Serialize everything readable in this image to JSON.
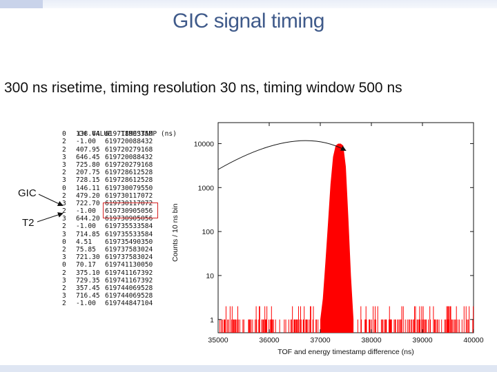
{
  "slide": {
    "title": "GIC signal timing",
    "subtitle": "300 ns risetime, timing resolution 30 ns, timing window 500 ns"
  },
  "table": {
    "headers": [
      "CH",
      "VALUE",
      "TIMESTAMP (ns)"
    ],
    "rows": [
      [
        "0",
        "138.64",
        "619718903350"
      ],
      [
        "2",
        "-1.00",
        "619720088432"
      ],
      [
        "2",
        "407.95",
        "619720279168"
      ],
      [
        "3",
        "646.45",
        "619720088432"
      ],
      [
        "3",
        "725.80",
        "619720279168"
      ],
      [
        "2",
        "207.75",
        "619728612528"
      ],
      [
        "3",
        "728.15",
        "619728612528"
      ],
      [
        "0",
        "146.11",
        "619730079550"
      ],
      [
        "2",
        "479.20",
        "619730117072"
      ],
      [
        "3",
        "722.70",
        "619730117072"
      ],
      [
        "2",
        "-1.00",
        "619730905056"
      ],
      [
        "3",
        "644.20",
        "619730905056"
      ],
      [
        "2",
        "-1.00",
        "619735533584"
      ],
      [
        "3",
        "714.85",
        "619735533584"
      ],
      [
        "0",
        "4.51",
        "619735490350"
      ],
      [
        "2",
        "75.85",
        "619737583024"
      ],
      [
        "3",
        "721.30",
        "619737583024"
      ],
      [
        "0",
        "70.17",
        "619741130050"
      ],
      [
        "2",
        "375.10",
        "619741167392"
      ],
      [
        "3",
        "729.35",
        "619741167392"
      ],
      [
        "2",
        "357.45",
        "619744069528"
      ],
      [
        "3",
        "716.45",
        "619744069528"
      ],
      [
        "2",
        "-1.00",
        "619744847104"
      ]
    ]
  },
  "callouts": {
    "gic": "GIC",
    "t2": "T2"
  },
  "colors": {
    "bars": "#ff0000",
    "title": "#3f5a8a",
    "highlight": "#d42020"
  },
  "chart_data": {
    "type": "bar",
    "xlabel": "TOF and energy timestamp difference (ns)",
    "ylabel": "Counts / 10 ns bin",
    "xlim": [
      35000,
      40000
    ],
    "ylim": [
      0.5,
      30000
    ],
    "yscale": "log",
    "xticks": [
      "35000",
      "36000",
      "37000",
      "38000",
      "39000",
      "40000"
    ],
    "yticks": [
      "1",
      "10",
      "100",
      "1000",
      "10000"
    ],
    "grid": false,
    "peak": {
      "x": [
        37000,
        37050,
        37100,
        37150,
        37200,
        37250,
        37300,
        37350,
        37400,
        37450,
        37500,
        37550,
        37600,
        37650
      ],
      "y": [
        1,
        3,
        20,
        150,
        1200,
        5000,
        9000,
        10000,
        10000,
        9000,
        3000,
        200,
        10,
        1
      ]
    },
    "background_level": 1
  }
}
